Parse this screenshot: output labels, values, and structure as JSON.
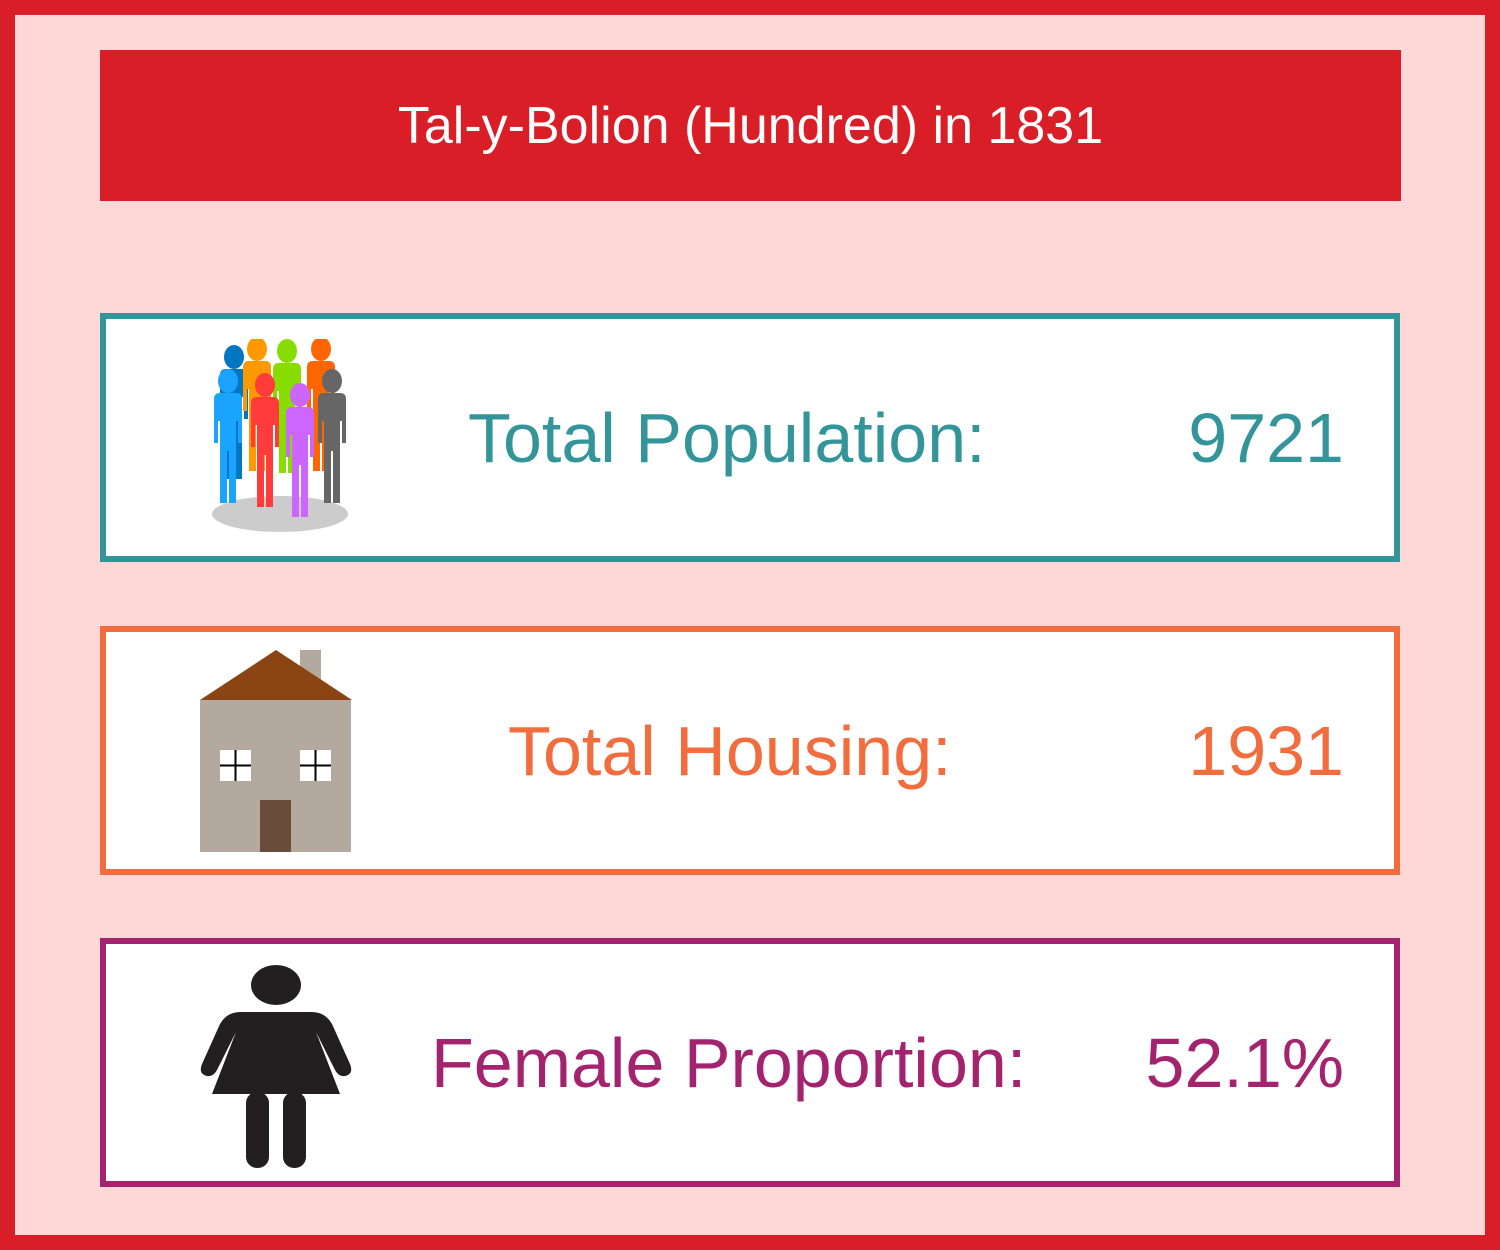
{
  "title": "Tal-y-Bolion (Hundred) in 1831",
  "colors": {
    "frame": "#d91e28",
    "background": "#ffd7d7",
    "population": "#339599",
    "housing": "#f26d3d",
    "female": "#a3236f"
  },
  "stats": [
    {
      "icon": "people-group-icon",
      "label": "Total Population:",
      "value": "9721"
    },
    {
      "icon": "house-icon",
      "label": "Total Housing:",
      "value": "1931"
    },
    {
      "icon": "female-icon",
      "label": "Female Proportion:",
      "value": "52.1%"
    }
  ]
}
